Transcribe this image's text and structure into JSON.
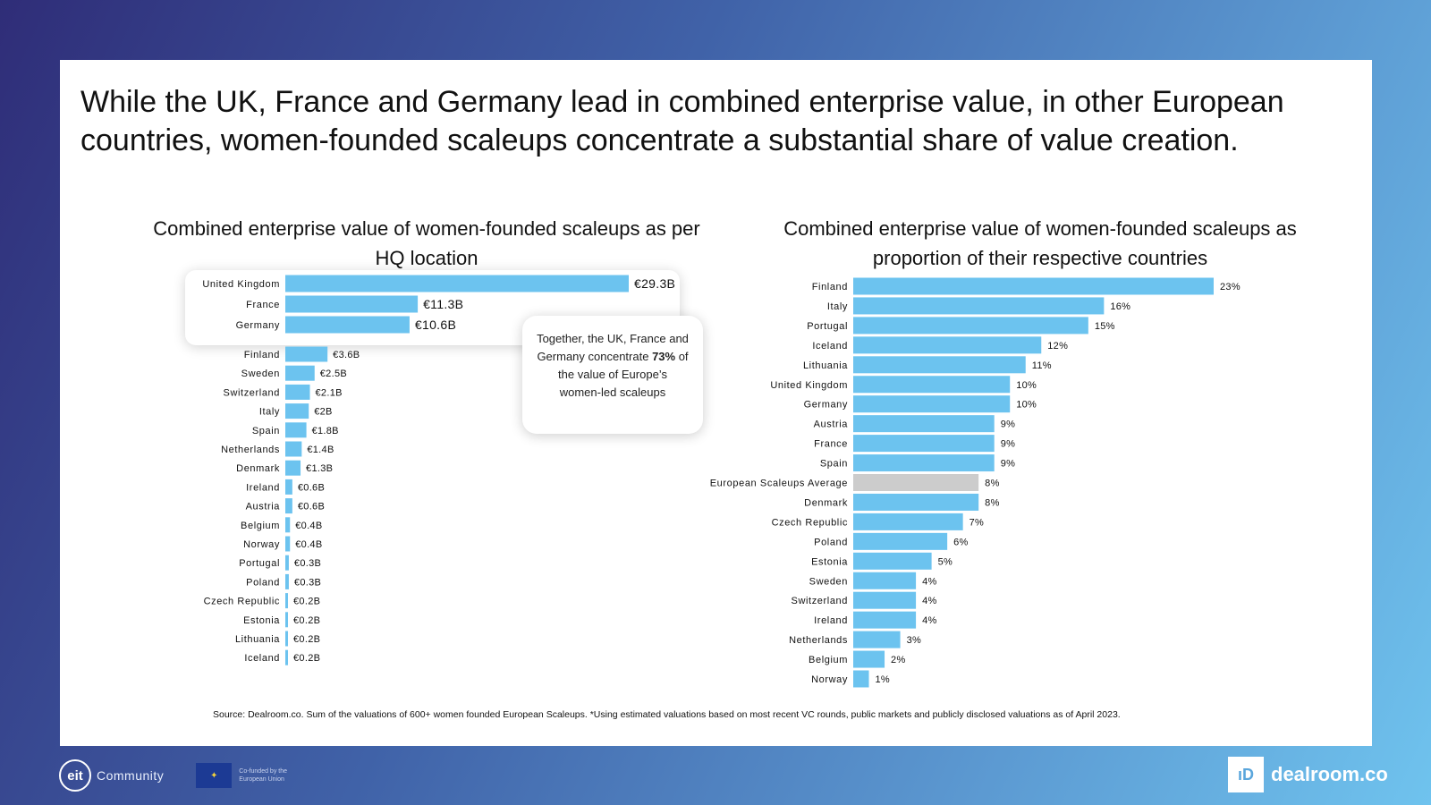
{
  "headline": "While the UK, France and Germany lead in combined enterprise value, in other European countries, women-founded scaleups concentrate a substantial share of value creation.",
  "callout": {
    "pre": "Together,  the UK, France and Germany concentrate ",
    "bold": "73%",
    "post": " of the value of Europe’s women-led scaleups"
  },
  "source": "Source: Dealroom.co. Sum of the valuations of 600+ women founded European Scaleups. *Using estimated valuations based on most recent VC rounds, public markets and publicly disclosed valuations as of April 2023.",
  "footer": {
    "eit_mark": "eit",
    "eit_label": "Community",
    "eu_label": "Co-funded by the European Union",
    "dealroom_mark": "ıD",
    "dealroom_label": "dealroom.co"
  },
  "colors": {
    "bar": "#6cc3ef",
    "average_bar": "#cccccc",
    "background_start": "#2f2d78",
    "background_end": "#6fc3ee"
  },
  "chart_data": [
    {
      "type": "bar",
      "orientation": "horizontal",
      "title": "Combined enterprise  value of women-founded  scaleups as per HQ location",
      "categories": [
        "United Kingdom",
        "France",
        "Germany",
        "Finland",
        "Sweden",
        "Switzerland",
        "Italy",
        "Spain",
        "Netherlands",
        "Denmark",
        "Ireland",
        "Austria",
        "Belgium",
        "Norway",
        "Portugal",
        "Poland",
        "Czech Republic",
        "Estonia",
        "Lithuania",
        "Iceland"
      ],
      "values": [
        29.3,
        11.3,
        10.6,
        3.6,
        2.5,
        2.1,
        2.0,
        1.8,
        1.4,
        1.3,
        0.6,
        0.6,
        0.4,
        0.4,
        0.3,
        0.3,
        0.2,
        0.2,
        0.2,
        0.2
      ],
      "labels": [
        "€29.3B",
        "€11.3B",
        "€10.6B",
        "€3.6B",
        "€2.5B",
        "€2.1B",
        "€2B",
        "€1.8B",
        "€1.4B",
        "€1.3B",
        "€0.6B",
        "€0.6B",
        "€0.4B",
        "€0.4B",
        "€0.3B",
        "€0.3B",
        "€0.2B",
        "€0.2B",
        "€0.2B",
        "€0.2B"
      ],
      "unit": "€B",
      "highlighted": [
        "United Kingdom",
        "France",
        "Germany"
      ]
    },
    {
      "type": "bar",
      "orientation": "horizontal",
      "title": "Combined enterprise  value of women-founded  scaleups as proportion  of their respective  countries",
      "categories": [
        "Finland",
        "Italy",
        "Portugal",
        "Iceland",
        "Lithuania",
        "United Kingdom",
        "Germany",
        "Austria",
        "France",
        "Spain",
        "European Scaleups Average",
        "Denmark",
        "Czech Republic",
        "Poland",
        "Estonia",
        "Sweden",
        "Switzerland",
        "Ireland",
        "Netherlands",
        "Belgium",
        "Norway"
      ],
      "values": [
        23,
        16,
        15,
        12,
        11,
        10,
        10,
        9,
        9,
        9,
        8,
        8,
        7,
        6,
        5,
        4,
        4,
        4,
        3,
        2,
        1
      ],
      "labels": [
        "23%",
        "16%",
        "15%",
        "12%",
        "11%",
        "10%",
        "10%",
        "9%",
        "9%",
        "9%",
        "8%",
        "8%",
        "7%",
        "6%",
        "5%",
        "4%",
        "4%",
        "4%",
        "3%",
        "2%",
        "1%"
      ],
      "unit": "%",
      "highlighted": [
        "European Scaleups Average"
      ]
    }
  ]
}
